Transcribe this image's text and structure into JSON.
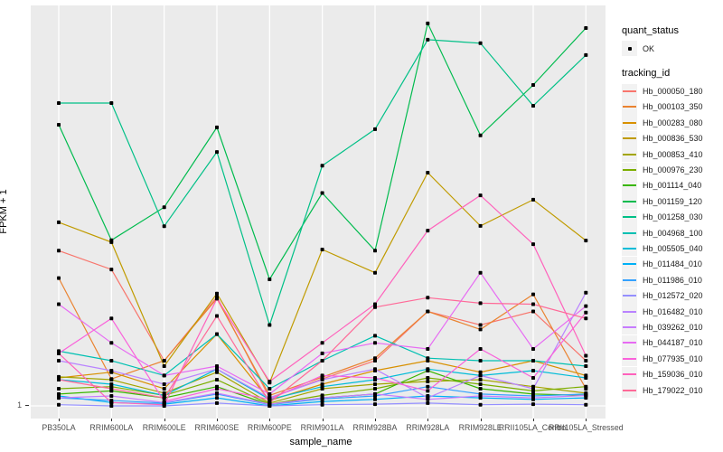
{
  "y_axis": {
    "title": "FPKM + 1",
    "tick_label": "1"
  },
  "x_axis": {
    "title": "sample_name"
  },
  "legend": {
    "quant_status_title": "quant_status",
    "quant_status_items": [
      {
        "label": "OK",
        "shape": "black-point"
      }
    ],
    "tracking_id_title": "tracking_id"
  },
  "panel": {
    "bg": "#EBEBEB",
    "grid_color": "#FFFFFF",
    "marker_color": "#000000"
  },
  "chart_data": {
    "type": "line",
    "title": "",
    "xlabel": "sample_name",
    "ylabel": "FPKM + 1",
    "yscale": "log10",
    "ytick_values": [
      1
    ],
    "legend_position": "right",
    "grid": "vertical-major",
    "x": [
      "PB350LA",
      "RRIM600LA",
      "RRIM600LE",
      "RRIM600SE",
      "RRIM600PE",
      "RRIM901LA",
      "RRIM928BA",
      "RRIM928LA",
      "RRIM928LE",
      "RRII105LA_Control",
      "RRII105LA_Stressed"
    ],
    "series": [
      {
        "name": "Hb_000050_180",
        "color": "#F8766D",
        "values": [
          15.0,
          10.8,
          2.2,
          6.7,
          1.15,
          1.6,
          2.2,
          5.2,
          4.1,
          5.2,
          2.2
        ]
      },
      {
        "name": "Hb_000103_350",
        "color": "#EA8331",
        "values": [
          9.3,
          1.6,
          2.2,
          6.5,
          1.2,
          1.65,
          2.3,
          5.2,
          3.8,
          7.0,
          1.35
        ]
      },
      {
        "name": "Hb_000283_080",
        "color": "#D89000",
        "values": [
          1.63,
          1.8,
          1.35,
          3.5,
          1.1,
          1.46,
          1.85,
          2.2,
          1.8,
          2.2,
          1.7
        ]
      },
      {
        "name": "Hb_000836_530",
        "color": "#C09B00",
        "values": [
          24.6,
          17.4,
          2.0,
          7.1,
          1.5,
          15.3,
          10.2,
          58.5,
          23.1,
          36.5,
          17.9
        ]
      },
      {
        "name": "Hb_000853_410",
        "color": "#A3A500",
        "values": [
          1.66,
          1.58,
          1.25,
          1.8,
          1.05,
          1.35,
          1.46,
          1.53,
          1.58,
          1.4,
          1.25
        ]
      },
      {
        "name": "Hb_000976_230",
        "color": "#7CAE00",
        "values": [
          1.35,
          1.4,
          1.2,
          1.58,
          1.03,
          1.2,
          1.35,
          1.63,
          1.46,
          1.3,
          1.4
        ]
      },
      {
        "name": "Hb_001114_040",
        "color": "#39B600",
        "values": [
          1.23,
          1.3,
          1.15,
          1.4,
          1.02,
          1.15,
          1.23,
          1.85,
          1.35,
          1.23,
          1.2
        ]
      },
      {
        "name": "Hb_001159_120",
        "color": "#00BB4E",
        "values": [
          135,
          18,
          32,
          129,
          9.1,
          41,
          15,
          790,
          112,
          270,
          730
        ]
      },
      {
        "name": "Hb_001258_030",
        "color": "#00C087",
        "values": [
          197,
          197,
          23,
          84,
          4.1,
          66,
          125,
          595,
          560,
          188,
          455
        ]
      },
      {
        "name": "Hb_004968_100",
        "color": "#00C0B2",
        "values": [
          2.6,
          2.2,
          1.7,
          3.5,
          1.35,
          2.2,
          3.4,
          2.3,
          2.2,
          2.2,
          2.0
        ]
      },
      {
        "name": "Hb_005505_040",
        "color": "#00BCD8",
        "values": [
          1.58,
          1.46,
          1.2,
          1.9,
          1.12,
          1.4,
          1.58,
          1.9,
          1.7,
          1.85,
          1.63
        ]
      },
      {
        "name": "Hb_011484_010",
        "color": "#00B0F6",
        "values": [
          1.19,
          1.06,
          1.03,
          1.15,
          1.0,
          1.08,
          1.12,
          1.19,
          1.15,
          1.12,
          1.15
        ]
      },
      {
        "name": "Hb_011986_010",
        "color": "#35A2FF",
        "values": [
          1.15,
          1.1,
          1.05,
          1.23,
          1.02,
          1.13,
          1.19,
          1.4,
          1.23,
          1.19,
          1.23
        ]
      },
      {
        "name": "Hb_012572_020",
        "color": "#9590FF",
        "values": [
          1.02,
          1.0,
          1.0,
          1.05,
          1.0,
          1.02,
          1.03,
          1.05,
          1.02,
          1.03,
          1.02
        ]
      },
      {
        "name": "Hb_016482_010",
        "color": "#B983FF",
        "values": [
          2.2,
          1.85,
          1.46,
          1.9,
          1.15,
          1.58,
          1.9,
          1.15,
          1.7,
          1.35,
          7.2
        ]
      },
      {
        "name": "Hb_039262_010",
        "color": "#C77CFF",
        "values": [
          1.15,
          1.19,
          1.06,
          1.25,
          1.03,
          1.15,
          1.23,
          1.12,
          1.19,
          1.15,
          1.2
        ]
      },
      {
        "name": "Hb_044187_010",
        "color": "#E76BF3",
        "values": [
          5.9,
          3.0,
          1.7,
          2.0,
          1.23,
          2.5,
          3.0,
          2.7,
          10.2,
          2.7,
          5.7
        ]
      },
      {
        "name": "Hb_077935_010",
        "color": "#FA62DB",
        "values": [
          2.5,
          4.6,
          1.08,
          1.35,
          1.12,
          1.7,
          1.63,
          1.3,
          2.7,
          1.63,
          5.1
        ]
      },
      {
        "name": "Hb_159036_010",
        "color": "#FF62BC",
        "values": [
          2.5,
          1.06,
          1.02,
          6.5,
          1.53,
          3.0,
          5.9,
          21.3,
          39.4,
          16.8,
          2.4
        ]
      },
      {
        "name": "Hb_179022_010",
        "color": "#FF6A98",
        "values": [
          1.58,
          1.35,
          1.15,
          4.8,
          1.06,
          2.2,
          5.6,
          6.6,
          6.0,
          5.9,
          4.6
        ]
      }
    ]
  }
}
